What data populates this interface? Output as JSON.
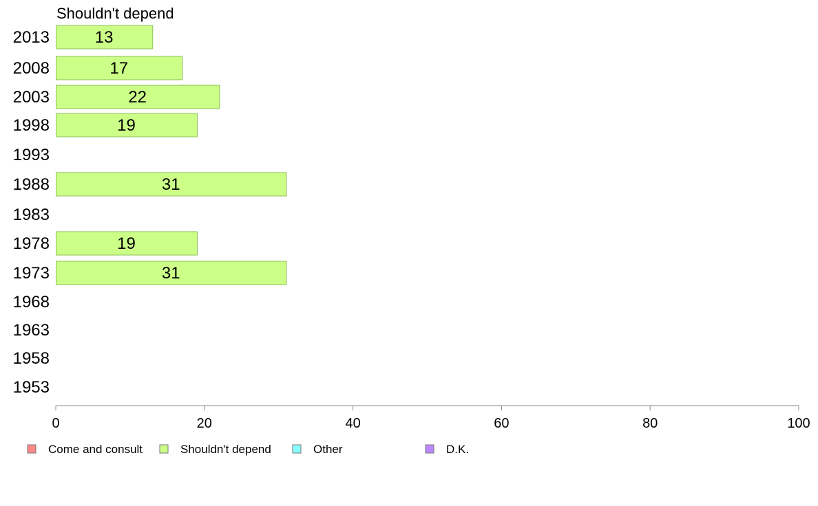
{
  "chart_data": {
    "type": "bar",
    "orientation": "horizontal",
    "panel_title": "Shouldn't depend",
    "categories": [
      "2013",
      "2008",
      "2003",
      "1998",
      "1993",
      "1988",
      "1983",
      "1978",
      "1973",
      "1968",
      "1963",
      "1958",
      "1953"
    ],
    "series": [
      {
        "name": "Shouldn't depend",
        "color": "#ccff88",
        "values": [
          13,
          17,
          22,
          19,
          null,
          31,
          null,
          19,
          31,
          null,
          null,
          null,
          null
        ],
        "labels": [
          "13",
          "17",
          "22",
          "19",
          "",
          "31",
          "",
          "19",
          "31",
          "",
          "",
          "",
          ""
        ]
      }
    ],
    "xlim": [
      0,
      100
    ],
    "xticks": [
      "0",
      "20",
      "40",
      "60",
      "80",
      "100"
    ],
    "grid": false,
    "legend_position": "bottom",
    "legend": [
      {
        "label": "Come and consult",
        "color": "#ff8888"
      },
      {
        "label": "Shouldn't depend",
        "color": "#ccff88"
      },
      {
        "label": "Other",
        "color": "#88ffff"
      },
      {
        "label": "D.K.",
        "color": "#bb88ff"
      }
    ]
  }
}
